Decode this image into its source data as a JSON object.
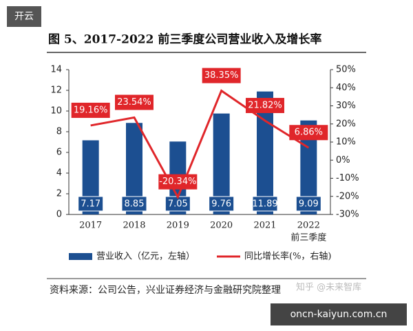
{
  "badge": "开云",
  "chart_data": {
    "type": "bar",
    "title": "图 5、2017-2022 前三季度公司营业收入及增长率",
    "categories": [
      "2017",
      "2018",
      "2019",
      "2020",
      "2021",
      "2022"
    ],
    "category_note": "前三季度",
    "series": [
      {
        "name": "营业收入（亿元，左轴）",
        "color": "#1c4f91",
        "values": [
          7.17,
          8.85,
          7.05,
          9.76,
          11.89,
          9.09
        ]
      },
      {
        "name": "同比增长率(%，右轴)",
        "color": "#e0262a",
        "type": "line",
        "axis": "y2",
        "values": [
          19.16,
          23.54,
          -20.34,
          38.35,
          21.82,
          6.86
        ],
        "value_labels": [
          "19.16%",
          "23.54%",
          "-20.34%",
          "38.35%",
          "21.82%",
          "6.86%"
        ]
      }
    ],
    "ylim": [
      0,
      14
    ],
    "yticks": [
      0,
      2,
      4,
      6,
      8,
      10,
      12,
      14
    ],
    "y2lim": [
      -30,
      50
    ],
    "y2ticks": [
      {
        "value": -30,
        "label": "-30%"
      },
      {
        "value": -20,
        "label": "-20%"
      },
      {
        "value": -10,
        "label": "-10%"
      },
      {
        "value": 0,
        "label": "0%"
      },
      {
        "value": 10,
        "label": "10%"
      },
      {
        "value": 20,
        "label": "20%"
      },
      {
        "value": 30,
        "label": "30%"
      },
      {
        "value": 40,
        "label": "40%"
      },
      {
        "value": 50,
        "label": "50%"
      }
    ]
  },
  "source": "资料来源：公司公告，兴业证券经济与金融研究院整理",
  "watermark": "知乎 @未来智库",
  "site": "oncn-kaiyun.com.cn"
}
